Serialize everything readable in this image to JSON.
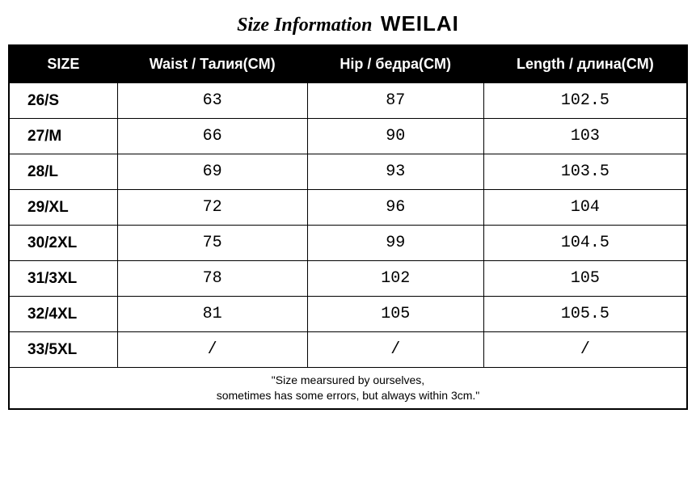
{
  "title": {
    "prefix": "Size Information",
    "brand": "WEILAI",
    "prefix_font_style": "italic",
    "prefix_font_weight": "bold",
    "prefix_fontsize": 24,
    "brand_fontsize": 26,
    "brand_font_weight": 900,
    "color": "#000000"
  },
  "table": {
    "type": "table",
    "header_bg": "#000000",
    "header_fg": "#ffffff",
    "border_color": "#000000",
    "cell_bg": "#ffffff",
    "cell_fg": "#000000",
    "header_fontsize": 18,
    "cell_fontsize": 20,
    "size_col_fontsize": 19,
    "columns": [
      {
        "key": "size",
        "label": "SIZE",
        "width_pct": 16,
        "align": "left"
      },
      {
        "key": "waist",
        "label": "Waist / Талия(CM)",
        "width_pct": 28,
        "align": "center"
      },
      {
        "key": "hip",
        "label": "Hip / бедра(CM)",
        "width_pct": 26,
        "align": "center"
      },
      {
        "key": "length",
        "label": "Length / длина(CM)",
        "width_pct": 30,
        "align": "center"
      }
    ],
    "rows": [
      {
        "size": "26/S",
        "waist": "63",
        "hip": "87",
        "length": "102.5"
      },
      {
        "size": "27/M",
        "waist": "66",
        "hip": "90",
        "length": "103"
      },
      {
        "size": "28/L",
        "waist": "69",
        "hip": "93",
        "length": "103.5"
      },
      {
        "size": "29/XL",
        "waist": "72",
        "hip": "96",
        "length": "104"
      },
      {
        "size": "30/2XL",
        "waist": "75",
        "hip": "99",
        "length": "104.5"
      },
      {
        "size": "31/3XL",
        "waist": "78",
        "hip": "102",
        "length": "105"
      },
      {
        "size": "32/4XL",
        "waist": "81",
        "hip": "105",
        "length": "105.5"
      },
      {
        "size": "33/5XL",
        "waist": "/",
        "hip": "/",
        "length": "/"
      }
    ],
    "footnote": {
      "line1": "\"Size mearsured by ourselves,",
      "line2": "sometimes has some errors, but always within 3cm.\"",
      "fontsize": 14
    }
  }
}
